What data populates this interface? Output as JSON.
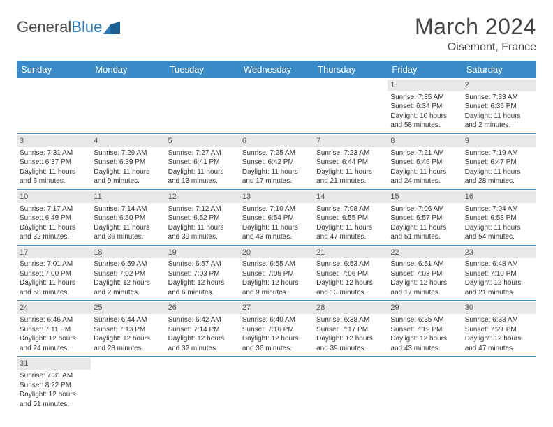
{
  "logo": {
    "word1": "General",
    "word2": "Blue"
  },
  "title": "March 2024",
  "location": "Oisemont, France",
  "colors": {
    "header_bg": "#3b8bc9",
    "header_text": "#ffffff",
    "day_bar_bg": "#e8e8e8",
    "week_border": "#3b8bc9",
    "logo_blue": "#2a7ab8"
  },
  "day_headers": [
    "Sunday",
    "Monday",
    "Tuesday",
    "Wednesday",
    "Thursday",
    "Friday",
    "Saturday"
  ],
  "weeks": [
    [
      {
        "n": "",
        "sr": "",
        "ss": "",
        "dl1": "",
        "dl2": ""
      },
      {
        "n": "",
        "sr": "",
        "ss": "",
        "dl1": "",
        "dl2": ""
      },
      {
        "n": "",
        "sr": "",
        "ss": "",
        "dl1": "",
        "dl2": ""
      },
      {
        "n": "",
        "sr": "",
        "ss": "",
        "dl1": "",
        "dl2": ""
      },
      {
        "n": "",
        "sr": "",
        "ss": "",
        "dl1": "",
        "dl2": ""
      },
      {
        "n": "1",
        "sr": "Sunrise: 7:35 AM",
        "ss": "Sunset: 6:34 PM",
        "dl1": "Daylight: 10 hours",
        "dl2": "and 58 minutes."
      },
      {
        "n": "2",
        "sr": "Sunrise: 7:33 AM",
        "ss": "Sunset: 6:36 PM",
        "dl1": "Daylight: 11 hours",
        "dl2": "and 2 minutes."
      }
    ],
    [
      {
        "n": "3",
        "sr": "Sunrise: 7:31 AM",
        "ss": "Sunset: 6:37 PM",
        "dl1": "Daylight: 11 hours",
        "dl2": "and 6 minutes."
      },
      {
        "n": "4",
        "sr": "Sunrise: 7:29 AM",
        "ss": "Sunset: 6:39 PM",
        "dl1": "Daylight: 11 hours",
        "dl2": "and 9 minutes."
      },
      {
        "n": "5",
        "sr": "Sunrise: 7:27 AM",
        "ss": "Sunset: 6:41 PM",
        "dl1": "Daylight: 11 hours",
        "dl2": "and 13 minutes."
      },
      {
        "n": "6",
        "sr": "Sunrise: 7:25 AM",
        "ss": "Sunset: 6:42 PM",
        "dl1": "Daylight: 11 hours",
        "dl2": "and 17 minutes."
      },
      {
        "n": "7",
        "sr": "Sunrise: 7:23 AM",
        "ss": "Sunset: 6:44 PM",
        "dl1": "Daylight: 11 hours",
        "dl2": "and 21 minutes."
      },
      {
        "n": "8",
        "sr": "Sunrise: 7:21 AM",
        "ss": "Sunset: 6:46 PM",
        "dl1": "Daylight: 11 hours",
        "dl2": "and 24 minutes."
      },
      {
        "n": "9",
        "sr": "Sunrise: 7:19 AM",
        "ss": "Sunset: 6:47 PM",
        "dl1": "Daylight: 11 hours",
        "dl2": "and 28 minutes."
      }
    ],
    [
      {
        "n": "10",
        "sr": "Sunrise: 7:17 AM",
        "ss": "Sunset: 6:49 PM",
        "dl1": "Daylight: 11 hours",
        "dl2": "and 32 minutes."
      },
      {
        "n": "11",
        "sr": "Sunrise: 7:14 AM",
        "ss": "Sunset: 6:50 PM",
        "dl1": "Daylight: 11 hours",
        "dl2": "and 36 minutes."
      },
      {
        "n": "12",
        "sr": "Sunrise: 7:12 AM",
        "ss": "Sunset: 6:52 PM",
        "dl1": "Daylight: 11 hours",
        "dl2": "and 39 minutes."
      },
      {
        "n": "13",
        "sr": "Sunrise: 7:10 AM",
        "ss": "Sunset: 6:54 PM",
        "dl1": "Daylight: 11 hours",
        "dl2": "and 43 minutes."
      },
      {
        "n": "14",
        "sr": "Sunrise: 7:08 AM",
        "ss": "Sunset: 6:55 PM",
        "dl1": "Daylight: 11 hours",
        "dl2": "and 47 minutes."
      },
      {
        "n": "15",
        "sr": "Sunrise: 7:06 AM",
        "ss": "Sunset: 6:57 PM",
        "dl1": "Daylight: 11 hours",
        "dl2": "and 51 minutes."
      },
      {
        "n": "16",
        "sr": "Sunrise: 7:04 AM",
        "ss": "Sunset: 6:58 PM",
        "dl1": "Daylight: 11 hours",
        "dl2": "and 54 minutes."
      }
    ],
    [
      {
        "n": "17",
        "sr": "Sunrise: 7:01 AM",
        "ss": "Sunset: 7:00 PM",
        "dl1": "Daylight: 11 hours",
        "dl2": "and 58 minutes."
      },
      {
        "n": "18",
        "sr": "Sunrise: 6:59 AM",
        "ss": "Sunset: 7:02 PM",
        "dl1": "Daylight: 12 hours",
        "dl2": "and 2 minutes."
      },
      {
        "n": "19",
        "sr": "Sunrise: 6:57 AM",
        "ss": "Sunset: 7:03 PM",
        "dl1": "Daylight: 12 hours",
        "dl2": "and 6 minutes."
      },
      {
        "n": "20",
        "sr": "Sunrise: 6:55 AM",
        "ss": "Sunset: 7:05 PM",
        "dl1": "Daylight: 12 hours",
        "dl2": "and 9 minutes."
      },
      {
        "n": "21",
        "sr": "Sunrise: 6:53 AM",
        "ss": "Sunset: 7:06 PM",
        "dl1": "Daylight: 12 hours",
        "dl2": "and 13 minutes."
      },
      {
        "n": "22",
        "sr": "Sunrise: 6:51 AM",
        "ss": "Sunset: 7:08 PM",
        "dl1": "Daylight: 12 hours",
        "dl2": "and 17 minutes."
      },
      {
        "n": "23",
        "sr": "Sunrise: 6:48 AM",
        "ss": "Sunset: 7:10 PM",
        "dl1": "Daylight: 12 hours",
        "dl2": "and 21 minutes."
      }
    ],
    [
      {
        "n": "24",
        "sr": "Sunrise: 6:46 AM",
        "ss": "Sunset: 7:11 PM",
        "dl1": "Daylight: 12 hours",
        "dl2": "and 24 minutes."
      },
      {
        "n": "25",
        "sr": "Sunrise: 6:44 AM",
        "ss": "Sunset: 7:13 PM",
        "dl1": "Daylight: 12 hours",
        "dl2": "and 28 minutes."
      },
      {
        "n": "26",
        "sr": "Sunrise: 6:42 AM",
        "ss": "Sunset: 7:14 PM",
        "dl1": "Daylight: 12 hours",
        "dl2": "and 32 minutes."
      },
      {
        "n": "27",
        "sr": "Sunrise: 6:40 AM",
        "ss": "Sunset: 7:16 PM",
        "dl1": "Daylight: 12 hours",
        "dl2": "and 36 minutes."
      },
      {
        "n": "28",
        "sr": "Sunrise: 6:38 AM",
        "ss": "Sunset: 7:17 PM",
        "dl1": "Daylight: 12 hours",
        "dl2": "and 39 minutes."
      },
      {
        "n": "29",
        "sr": "Sunrise: 6:35 AM",
        "ss": "Sunset: 7:19 PM",
        "dl1": "Daylight: 12 hours",
        "dl2": "and 43 minutes."
      },
      {
        "n": "30",
        "sr": "Sunrise: 6:33 AM",
        "ss": "Sunset: 7:21 PM",
        "dl1": "Daylight: 12 hours",
        "dl2": "and 47 minutes."
      }
    ],
    [
      {
        "n": "31",
        "sr": "Sunrise: 7:31 AM",
        "ss": "Sunset: 8:22 PM",
        "dl1": "Daylight: 12 hours",
        "dl2": "and 51 minutes."
      },
      {
        "n": "",
        "sr": "",
        "ss": "",
        "dl1": "",
        "dl2": ""
      },
      {
        "n": "",
        "sr": "",
        "ss": "",
        "dl1": "",
        "dl2": ""
      },
      {
        "n": "",
        "sr": "",
        "ss": "",
        "dl1": "",
        "dl2": ""
      },
      {
        "n": "",
        "sr": "",
        "ss": "",
        "dl1": "",
        "dl2": ""
      },
      {
        "n": "",
        "sr": "",
        "ss": "",
        "dl1": "",
        "dl2": ""
      },
      {
        "n": "",
        "sr": "",
        "ss": "",
        "dl1": "",
        "dl2": ""
      }
    ]
  ]
}
